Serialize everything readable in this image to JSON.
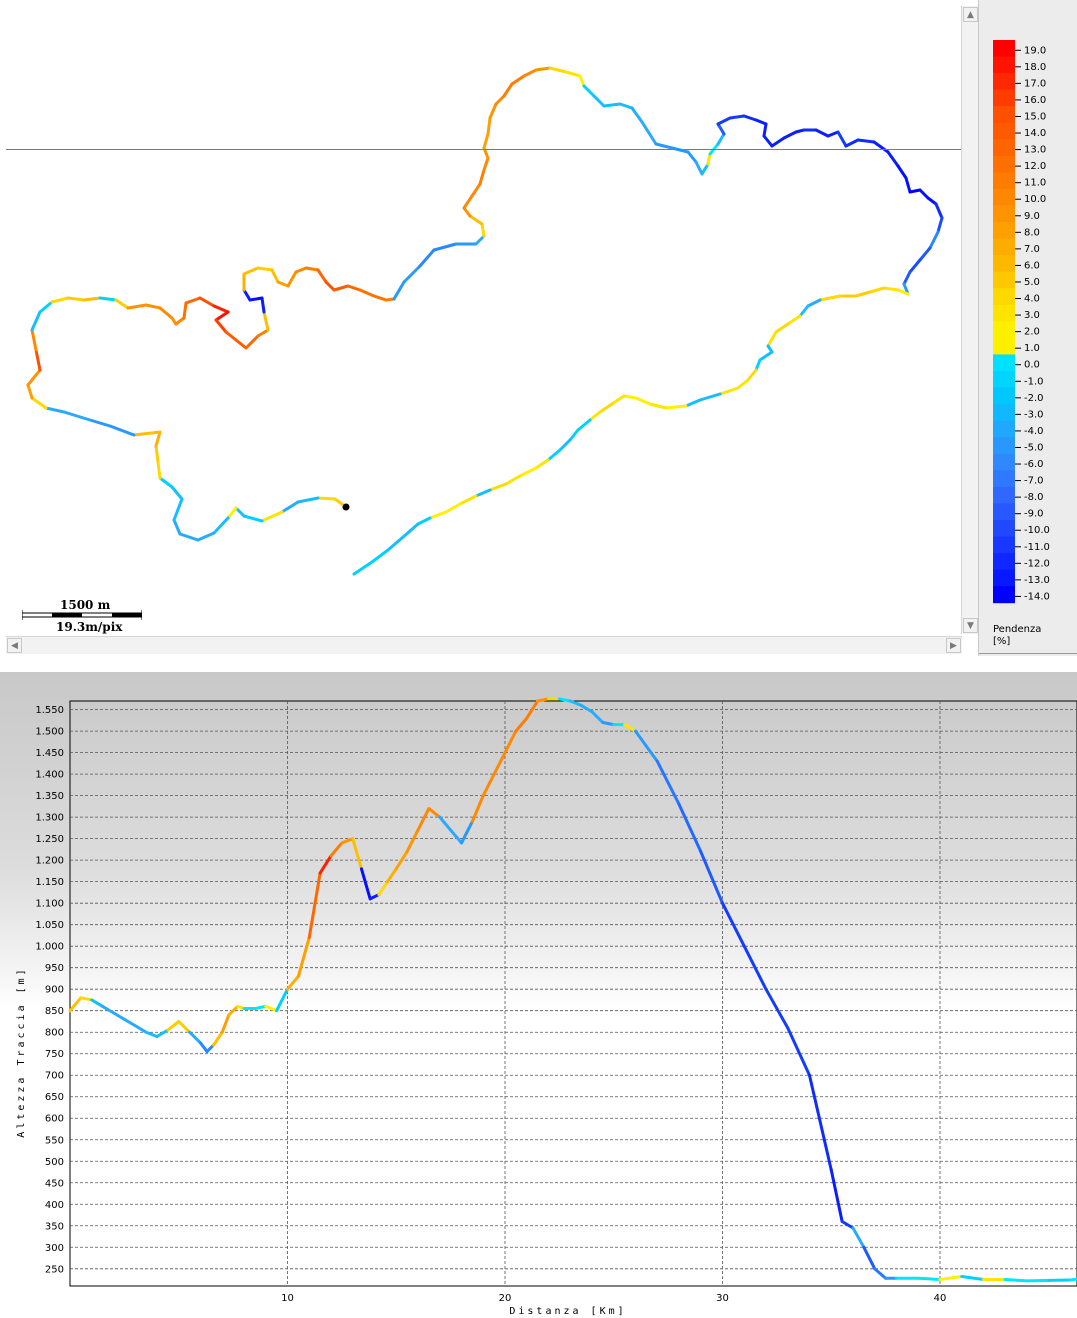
{
  "map": {
    "scale_distance": "1500 m",
    "scale_resolution": "19.3m/pix",
    "icons": {
      "scroll_up": "chevron-up-icon",
      "scroll_down": "chevron-down-icon",
      "scroll_left": "chevron-left-icon",
      "scroll_right": "chevron-right-icon"
    }
  },
  "legend": {
    "title_line1": "Pendenza",
    "title_line2": "[%]",
    "labels": [
      "19.0",
      "18.0",
      "17.0",
      "16.0",
      "15.0",
      "14.0",
      "13.0",
      "12.0",
      "11.0",
      "10.0",
      "9.0",
      "8.0",
      "7.0",
      "6.0",
      "5.0",
      "4.0",
      "3.0",
      "2.0",
      "1.0",
      "0.0",
      "-1.0",
      "-2.0",
      "-3.0",
      "-4.0",
      "-5.0",
      "-6.0",
      "-7.0",
      "-8.0",
      "-9.0",
      "-10.0",
      "-11.0",
      "-12.0",
      "-13.0",
      "-14.0"
    ],
    "colors": [
      "#ff0000",
      "#ff1400",
      "#ff2800",
      "#ff3c00",
      "#ff5000",
      "#ff5a00",
      "#ff6400",
      "#ff7000",
      "#ff7c00",
      "#ff8800",
      "#ff9400",
      "#ffa000",
      "#ffac00",
      "#ffb800",
      "#ffc800",
      "#ffd800",
      "#ffe400",
      "#fff000",
      "#fff000",
      "#00e0ff",
      "#00d4ff",
      "#00c8ff",
      "#10b8ff",
      "#20a8ff",
      "#2898ff",
      "#3088ff",
      "#3078ff",
      "#3068ff",
      "#2858ff",
      "#2048ff",
      "#1838ff",
      "#1028ff",
      "#0818ff",
      "#0000ff"
    ]
  },
  "profile": {
    "ylabel": "Altezza Traccia [m]",
    "xlabel": "Distanza [Km]"
  },
  "chart_data": {
    "type": "line",
    "title": "",
    "xlabel": "Distanza [Km]",
    "ylabel": "Altezza Traccia [m]",
    "xlim": [
      0,
      46.3
    ],
    "ylim": [
      210,
      1570
    ],
    "xticks": [
      "10",
      "20",
      "30",
      "40"
    ],
    "yticks": [
      "250",
      "300",
      "350",
      "400",
      "450",
      "500",
      "550",
      "600",
      "650",
      "700",
      "750",
      "800",
      "850",
      "900",
      "950",
      "1.000",
      "1.050",
      "1.100",
      "1.150",
      "1.200",
      "1.250",
      "1.300",
      "1.350",
      "1.400",
      "1.450",
      "1.500",
      "1.550"
    ],
    "grid": true,
    "color_scale": "Pendenza [%]",
    "series": [
      {
        "x": [
          0,
          0.5,
          1,
          1.5,
          2,
          2.5,
          3,
          3.5,
          4,
          4.5,
          5,
          5.5,
          6,
          6.3,
          6.6,
          7,
          7.3,
          7.7,
          8,
          8.5,
          9,
          9.5,
          10,
          10.5,
          11,
          11.5,
          12,
          12.5,
          13,
          13.4,
          13.8,
          14.2,
          14.6,
          15,
          15.5,
          16,
          16.5,
          17,
          17.5,
          18,
          18.5,
          19,
          19.5,
          20,
          20.5,
          21,
          21.5,
          22,
          22.5,
          23,
          23.5,
          24,
          24.5,
          25,
          25.5,
          26,
          27,
          28,
          29,
          30,
          31,
          32,
          33,
          34,
          35,
          35.5,
          36,
          36.5,
          37,
          37.5,
          38,
          39,
          40,
          41,
          42,
          43,
          44,
          45,
          46,
          46.3
        ],
        "y": [
          850,
          880,
          875,
          860,
          845,
          830,
          815,
          800,
          790,
          805,
          825,
          800,
          775,
          755,
          770,
          800,
          840,
          860,
          855,
          855,
          860,
          850,
          900,
          930,
          1020,
          1170,
          1210,
          1240,
          1250,
          1180,
          1110,
          1120,
          1150,
          1180,
          1220,
          1270,
          1320,
          1300,
          1270,
          1240,
          1290,
          1350,
          1400,
          1450,
          1500,
          1530,
          1570,
          1575,
          1575,
          1570,
          1560,
          1545,
          1520,
          1515,
          1515,
          1500,
          1430,
          1330,
          1220,
          1100,
          1000,
          900,
          810,
          700,
          480,
          360,
          345,
          300,
          250,
          228,
          228,
          228,
          225,
          232,
          225,
          225,
          222,
          223,
          224,
          226
        ],
        "slope": [
          5,
          3,
          -2,
          -3,
          -3,
          -3,
          -3,
          -2,
          -2,
          4,
          4,
          -3,
          -5,
          -5,
          5,
          7,
          6,
          2,
          0,
          0,
          1,
          -1,
          6,
          7,
          12,
          17,
          10,
          8,
          5,
          -13,
          -12,
          3,
          6,
          7,
          8,
          9,
          9,
          -3,
          -3,
          -4,
          9,
          9,
          9,
          9,
          10,
          10,
          8,
          3,
          0,
          -2,
          -3,
          -3,
          -4,
          0,
          2,
          -4,
          -6,
          -7,
          -8,
          -10,
          -10,
          -10,
          -10,
          -11,
          -12,
          -10,
          -3,
          -8,
          -6,
          -4,
          0,
          0,
          1,
          -1,
          2,
          0,
          0,
          -1,
          0,
          -1
        ]
      }
    ]
  }
}
